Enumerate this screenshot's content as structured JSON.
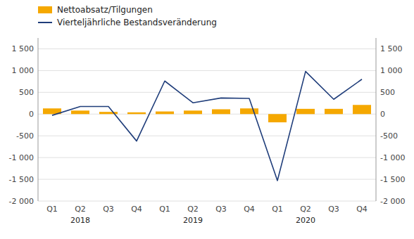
{
  "chart_data": {
    "type": "bar",
    "categories": [
      "Q1",
      "Q2",
      "Q3",
      "Q4",
      "Q1",
      "Q2",
      "Q3",
      "Q4",
      "Q1",
      "Q2",
      "Q3",
      "Q4"
    ],
    "series": [
      {
        "name": "Nettoabsatz/Tilgungen",
        "type": "bar",
        "color": "#f5a800",
        "values": [
          130,
          80,
          50,
          40,
          60,
          80,
          110,
          130,
          -190,
          120,
          120,
          210
        ]
      },
      {
        "name": "Vierteljährliche Bestandsveränderung",
        "type": "line",
        "color": "#1f3d7a",
        "values": [
          -30,
          175,
          175,
          -620,
          760,
          260,
          370,
          360,
          -1530,
          980,
          340,
          800
        ]
      }
    ],
    "annotations": [
      {
        "text": "2018",
        "x": 1
      },
      {
        "text": "2019",
        "x": 5
      },
      {
        "text": "2020",
        "x": 9
      }
    ],
    "ylim": [
      -2000,
      1750
    ],
    "yticks": [
      {
        "value": -2000,
        "label": "-2 000"
      },
      {
        "value": -1500,
        "label": "-1 500"
      },
      {
        "value": -1000,
        "label": "-1 000"
      },
      -500,
      0,
      500,
      {
        "value": 1000,
        "label": "1 000"
      },
      {
        "value": 1500,
        "label": "1 500"
      }
    ],
    "y2lim": [
      -2000,
      1750
    ],
    "y2ticks": [
      {
        "value": -2000,
        "label": "-2 000"
      },
      {
        "value": -1500,
        "label": "-1 500"
      },
      {
        "value": -1000,
        "label": "-1 000"
      },
      -500,
      0,
      500,
      {
        "value": 1000,
        "label": "1 000"
      },
      {
        "value": 1500,
        "label": "1 500"
      }
    ],
    "grid": true,
    "legend": "upper left"
  }
}
